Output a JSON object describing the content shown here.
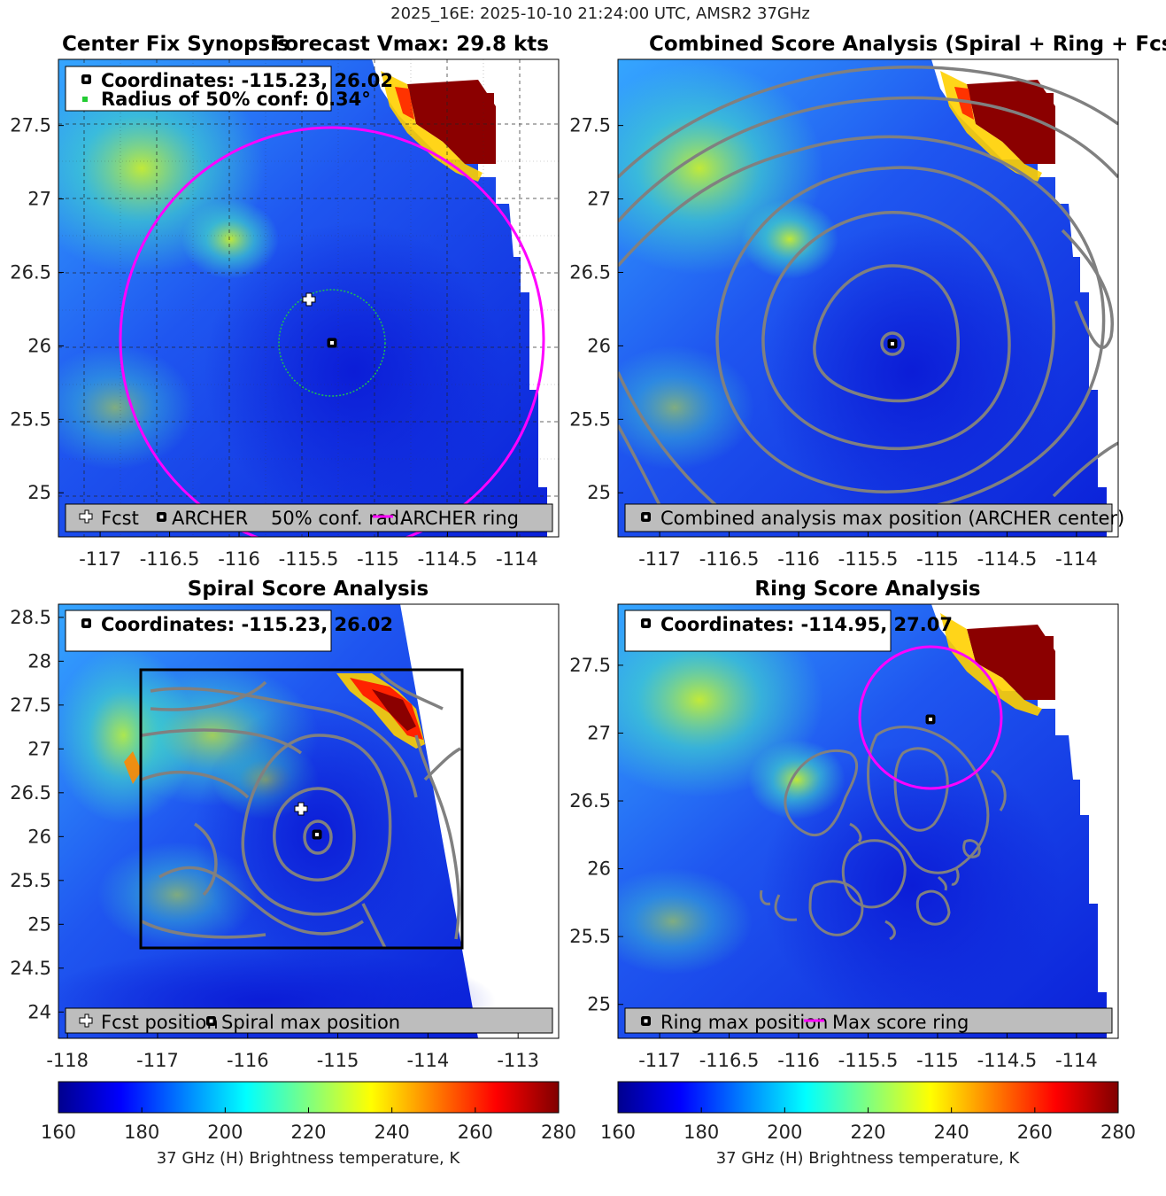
{
  "figure": {
    "suptitle": "2025_16E: 2025-10-10 21:24:00 UTC, AMSR2 37GHz"
  },
  "panels": {
    "synopsis": {
      "title": "Center Fix Synopsis",
      "title_right": "Forecast Vmax: 29.8 kts",
      "legend_top": [
        "Coordinates: -115.23, 26.02",
        "Radius of 50% conf: 0.34°"
      ],
      "legend_bottom": [
        "Fcst",
        "ARCHER",
        "50% conf. rad.",
        "ARCHER ring"
      ]
    },
    "combined": {
      "title": "Combined Score Analysis (Spiral + Ring + Fcst_Pe",
      "legend_bottom": [
        "Combined analysis max position (ARCHER center)"
      ]
    },
    "spiral": {
      "title": "Spiral Score Analysis",
      "legend_top": [
        "Coordinates: -115.23, 26.02"
      ],
      "legend_bottom": [
        "Fcst position",
        "Spiral max position"
      ]
    },
    "ring": {
      "title": "Ring Score Analysis",
      "legend_top": [
        "Coordinates: -114.95, 27.07"
      ],
      "legend_bottom": [
        "Ring max position",
        "Max score ring"
      ]
    }
  },
  "colorbar": {
    "label": "37 GHz (H) Brightness temperature, K",
    "ticks": [
      "160",
      "180",
      "200",
      "220",
      "240",
      "260",
      "280"
    ]
  },
  "colors": {
    "ring": "#ff00ff",
    "conf_circle": "#1fbf4f",
    "contour": "#808080",
    "legend_bg": "#bdbdbd"
  },
  "chart_data": [
    {
      "type": "heatmap",
      "panel": "synopsis",
      "x_ticks": [
        -117,
        -116.5,
        -116,
        -115.5,
        -115,
        -114.5,
        -114
      ],
      "y_ticks": [
        25,
        25.5,
        26,
        26.5,
        27,
        27.5
      ],
      "xlim": [
        -117.3,
        -113.7
      ],
      "ylim": [
        24.7,
        27.95
      ],
      "grid": true,
      "archer_center": [
        -115.23,
        26.02
      ],
      "forecast_position": [
        -115.4,
        26.32
      ],
      "conf_radius_deg": 0.34,
      "ring_radius_deg": 1.35,
      "vmin": 160,
      "vmax": 280
    },
    {
      "type": "heatmap",
      "panel": "combined",
      "x_ticks": [
        -117,
        -116.5,
        -116,
        -115.5,
        -115,
        -114.5,
        -114
      ],
      "y_ticks": [
        25,
        25.5,
        26,
        26.5,
        27,
        27.5
      ],
      "xlim": [
        -117.3,
        -113.7
      ],
      "ylim": [
        24.7,
        27.95
      ],
      "grid": false,
      "max_position": [
        -115.23,
        26.02
      ],
      "vmin": 160,
      "vmax": 280
    },
    {
      "type": "heatmap",
      "panel": "spiral",
      "x_ticks": [
        -118,
        -117,
        -116,
        -115,
        -114,
        -113
      ],
      "y_ticks": [
        24,
        24.5,
        25,
        25.5,
        26,
        26.5,
        27,
        27.5,
        28,
        28.5
      ],
      "xlim": [
        -118.1,
        -112.55
      ],
      "ylim": [
        23.7,
        28.65
      ],
      "grid": false,
      "max_position": [
        -115.23,
        26.02
      ],
      "forecast_position": [
        -115.4,
        26.32
      ],
      "analysis_box": [
        -117.2,
        24.72,
        -113.6,
        27.92
      ],
      "vmin": 160,
      "vmax": 280
    },
    {
      "type": "heatmap",
      "panel": "ring",
      "x_ticks": [
        -117,
        -116.5,
        -116,
        -115.5,
        -115,
        -114.5,
        -114
      ],
      "y_ticks": [
        25,
        25.5,
        26,
        26.5,
        27,
        27.5
      ],
      "xlim": [
        -117.3,
        -113.7
      ],
      "ylim": [
        24.75,
        27.95
      ],
      "grid": false,
      "max_position": [
        -114.95,
        27.07
      ],
      "ring_radius_deg": 0.5,
      "vmin": 160,
      "vmax": 280
    }
  ]
}
